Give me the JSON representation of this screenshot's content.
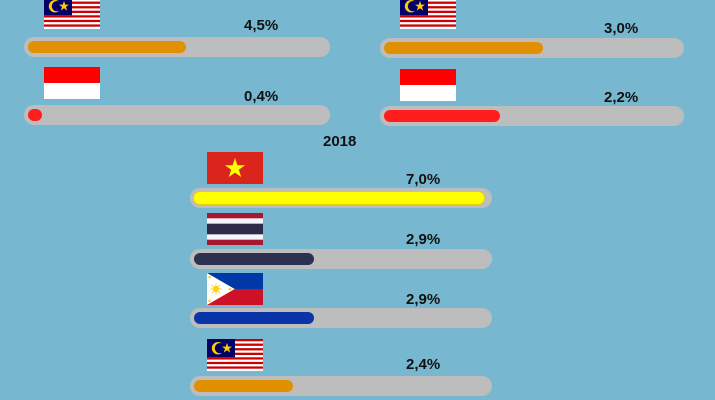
{
  "chart_data": [
    {
      "type": "bar",
      "title": "",
      "categories": [
        "Malaysia",
        "Indonesia"
      ],
      "values": [
        4.5,
        0.4
      ],
      "labels": [
        "4,5%",
        "0,4%"
      ],
      "colors": [
        "#e09000",
        "#ff1d1d"
      ],
      "flags": [
        "malaysia",
        "indonesia"
      ],
      "xlim": [
        0,
        8.5
      ]
    },
    {
      "type": "bar",
      "title": "",
      "categories": [
        "Malaysia",
        "Indonesia"
      ],
      "values": [
        3.0,
        2.2
      ],
      "labels": [
        "3,0%",
        "2,2%"
      ],
      "colors": [
        "#e09000",
        "#ff1d1d"
      ],
      "flags": [
        "malaysia",
        "indonesia"
      ],
      "xlim": [
        0,
        5.6
      ]
    },
    {
      "type": "bar",
      "title": "2018",
      "categories": [
        "Vietnam",
        "Thailand",
        "Philippines",
        "Malaysia"
      ],
      "values": [
        7.0,
        2.9,
        2.9,
        2.4
      ],
      "labels": [
        "7,0%",
        "2,9%",
        "2,9%",
        "2,4%"
      ],
      "colors": [
        "#ffff00",
        "#2c3152",
        "#0a35a8",
        "#e09000"
      ],
      "flags": [
        "vietnam",
        "thailand",
        "philippines",
        "malaysia"
      ],
      "xlim": [
        0,
        7.1
      ]
    }
  ]
}
